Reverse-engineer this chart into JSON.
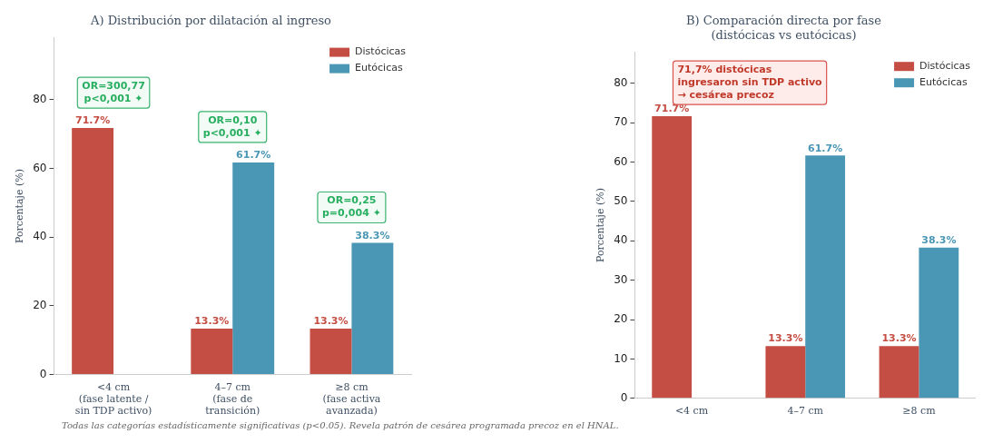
{
  "chart_data": [
    {
      "type": "bar",
      "title": "A) Distribución por dilatación al ingreso",
      "ylabel": "Porcentaje (%)",
      "categories": [
        "<4 cm\n(fase latente /\nsin TDP activo)",
        "4–7 cm\n(fase de\ntransición)",
        "≥8 cm\n(fase activa\navanzada)"
      ],
      "series": [
        {
          "name": "Distócicas",
          "color": "#c44e43",
          "values": [
            71.7,
            13.3,
            13.3
          ],
          "value_labels": [
            "71.7%",
            "13.3%",
            "13.3%"
          ]
        },
        {
          "name": "Eutócicas",
          "color": "#4a96b5",
          "values": [
            0,
            61.7,
            38.3
          ],
          "value_labels": [
            null,
            "61.7%",
            "38.3%"
          ]
        }
      ],
      "ylim": [
        0,
        98
      ],
      "yticks": [
        0,
        20,
        40,
        60,
        80
      ],
      "grid": false,
      "legend": "top right",
      "annotations": [
        "OR=300,77\np<0,001 ✦",
        "OR=0,10\np<0,001 ✦",
        "OR=0,25\np=0,004 ✦",
        "Todas las categorías estadísticamente significativas (p<0.05). Revela patrón de cesárea programada precoz en el HNAL."
      ]
    },
    {
      "type": "bar",
      "title": "B) Comparación directa por fase\n(distócicas vs eutócicas)",
      "ylabel": "Porcentaje (%)",
      "categories": [
        "<4 cm",
        "4–7 cm",
        "≥8 cm"
      ],
      "series": [
        {
          "name": "Distócicas",
          "color": "#c44e43",
          "values": [
            71.7,
            13.3,
            13.3
          ],
          "value_labels": [
            "71.7%",
            "13.3%",
            "13.3%"
          ]
        },
        {
          "name": "Eutócicas",
          "color": "#4a96b5",
          "values": [
            0,
            61.7,
            38.3
          ],
          "value_labels": [
            null,
            "61.7%",
            "38.3%"
          ]
        }
      ],
      "ylim": [
        0,
        88
      ],
      "yticks": [
        0,
        10,
        20,
        30,
        40,
        50,
        60,
        70,
        80
      ],
      "grid": false,
      "legend": "top right",
      "annotations": [
        "71,7% distócicas\ningresaron sin TDP activo\n→ cesárea precoz"
      ]
    }
  ]
}
